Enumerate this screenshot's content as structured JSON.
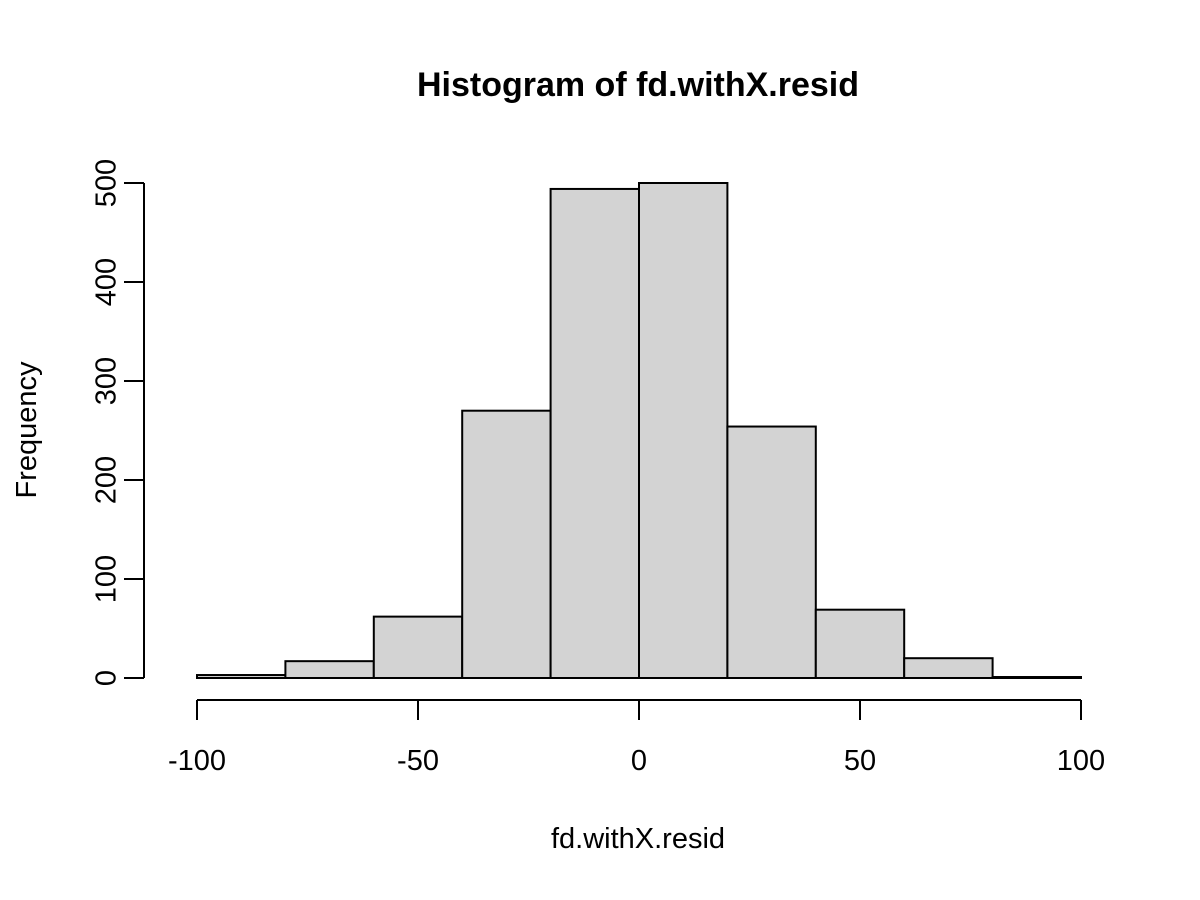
{
  "chart_data": {
    "type": "bar",
    "histogram": true,
    "title": "Histogram of fd.withX.resid",
    "xlabel": "fd.withX.resid",
    "ylabel": "Frequency",
    "bins": [
      {
        "start": -100,
        "end": -80,
        "count": 3
      },
      {
        "start": -80,
        "end": -60,
        "count": 17
      },
      {
        "start": -60,
        "end": -40,
        "count": 62
      },
      {
        "start": -40,
        "end": -20,
        "count": 270
      },
      {
        "start": -20,
        "end": 0,
        "count": 494
      },
      {
        "start": 0,
        "end": 20,
        "count": 500
      },
      {
        "start": 20,
        "end": 40,
        "count": 254
      },
      {
        "start": 40,
        "end": 60,
        "count": 69
      },
      {
        "start": 60,
        "end": 80,
        "count": 20
      },
      {
        "start": 80,
        "end": 100,
        "count": 1
      }
    ],
    "xlim": [
      -100,
      100
    ],
    "ylim": [
      0,
      500
    ],
    "xticks": [
      -100,
      -50,
      0,
      50,
      100
    ],
    "xtick_labels": [
      "-100",
      "-50",
      "0",
      "50",
      "100"
    ],
    "yticks": [
      0,
      100,
      200,
      300,
      400,
      500
    ],
    "ytick_labels": [
      "0",
      "100",
      "200",
      "300",
      "400",
      "500"
    ],
    "grid": false,
    "colors": {
      "bar_fill": "#d3d3d3",
      "bar_stroke": "#000000"
    }
  }
}
